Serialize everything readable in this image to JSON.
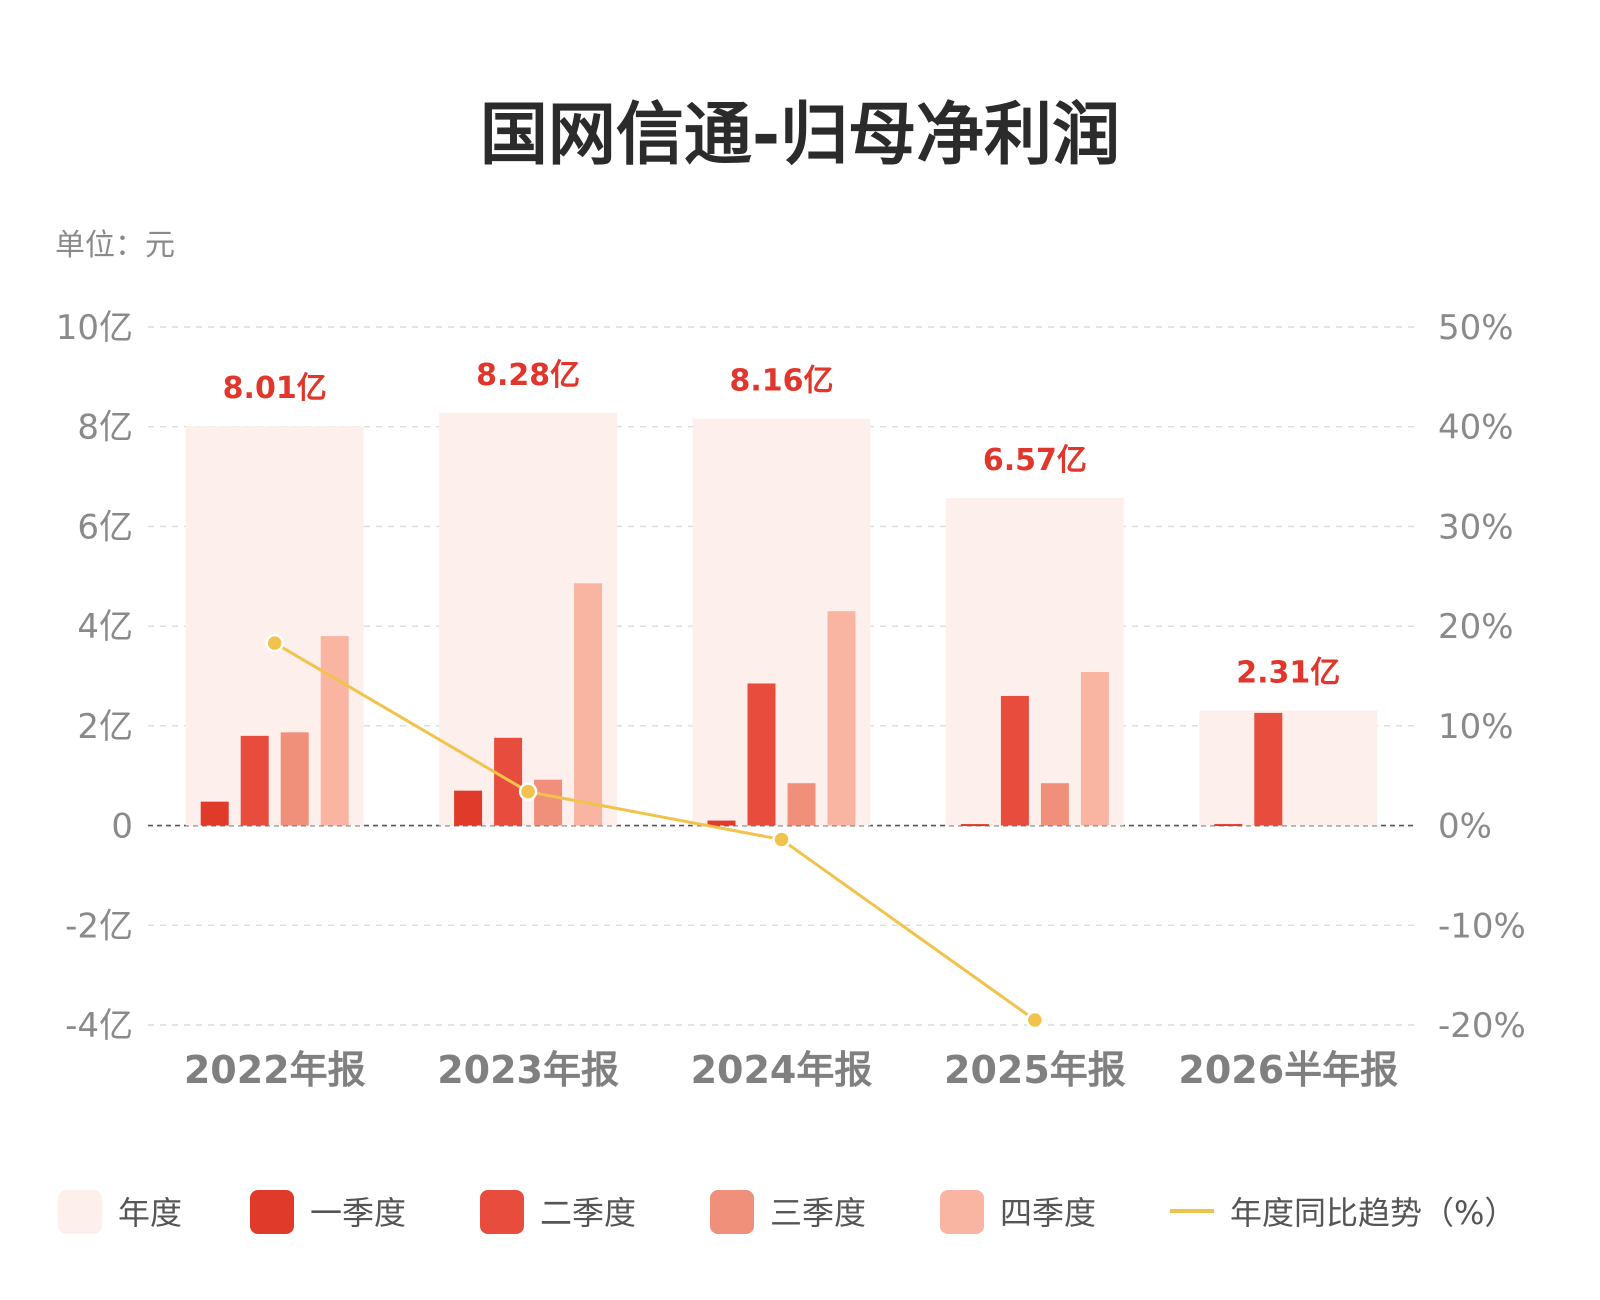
{
  "title": "国网信通-归母净利润",
  "unit_label": "单位：元",
  "legend": [
    {
      "label": "年度",
      "color": "#fdf0ec",
      "kind": "box"
    },
    {
      "label": "一季度",
      "color": "#df3a2a",
      "kind": "box"
    },
    {
      "label": "二季度",
      "color": "#e84c3d",
      "kind": "box"
    },
    {
      "label": "三季度",
      "color": "#f0907a",
      "kind": "box"
    },
    {
      "label": "四季度",
      "color": "#fab4a2",
      "kind": "box"
    },
    {
      "label": "年度同比趋势（%）",
      "color": "#f2c34c",
      "kind": "line"
    }
  ],
  "chart_data": {
    "type": "bar",
    "categories": [
      "2022年报",
      "2023年报",
      "2024年报",
      "2025年报",
      "2026半年报"
    ],
    "annual_labels": [
      "8.01亿",
      "8.28亿",
      "8.16亿",
      "6.57亿",
      "2.31亿"
    ],
    "series": [
      {
        "name": "年度",
        "values": [
          8.01,
          8.28,
          8.16,
          6.57,
          2.31
        ],
        "color": "#fdf0ec"
      },
      {
        "name": "一季度",
        "values": [
          0.48,
          0.7,
          0.1,
          0.03,
          0.03
        ],
        "color": "#df3a2a"
      },
      {
        "name": "二季度",
        "values": [
          1.8,
          1.76,
          2.85,
          2.6,
          2.26
        ],
        "color": "#e84c3d"
      },
      {
        "name": "三季度",
        "values": [
          1.87,
          0.92,
          0.85,
          0.85,
          null
        ],
        "color": "#f0907a"
      },
      {
        "name": "四季度",
        "values": [
          3.8,
          4.86,
          4.3,
          3.08,
          null
        ],
        "color": "#fab4a2"
      }
    ],
    "trend": {
      "name": "年度同比趋势（%）",
      "values": [
        18.3,
        3.4,
        -1.4,
        -19.5,
        null
      ],
      "color": "#f2c34c"
    },
    "y_left": {
      "min": -4,
      "max": 10,
      "ticks": [
        10,
        8,
        6,
        4,
        2,
        0,
        -2,
        -4
      ],
      "tick_labels": [
        "10亿",
        "8亿",
        "6亿",
        "4亿",
        "2亿",
        "0",
        "-2亿",
        "-4亿"
      ]
    },
    "y_right": {
      "min": -20,
      "max": 50,
      "ticks": [
        50,
        40,
        30,
        20,
        10,
        0,
        -10,
        -20
      ],
      "tick_labels": [
        "50%",
        "40%",
        "30%",
        "20%",
        "10%",
        "0%",
        "-10%",
        "-20%"
      ]
    },
    "grid": true,
    "legend_position": "bottom"
  }
}
